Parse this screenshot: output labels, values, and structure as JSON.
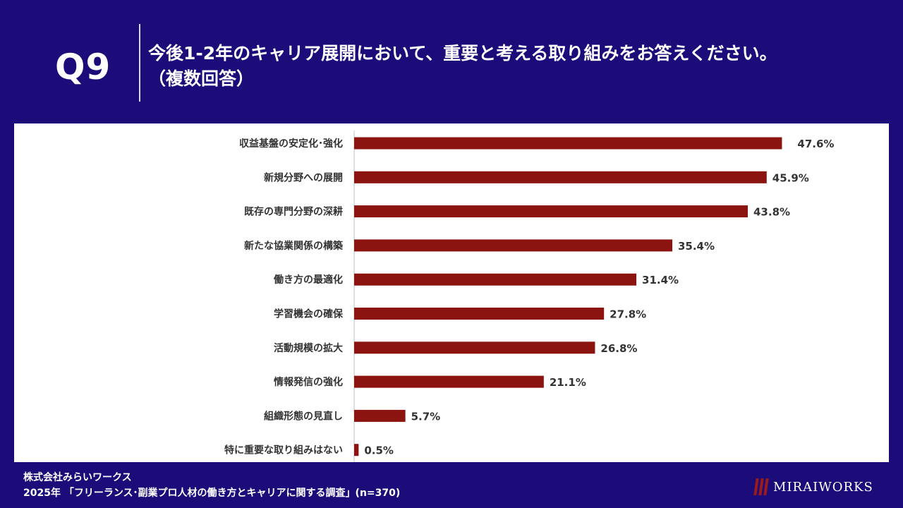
{
  "header": {
    "q_label": "Q9",
    "question": "今後1-2年のキャリア展開において、重要と考える取り組みをお答えください。",
    "question_note": "（複数回答）"
  },
  "chart_data": {
    "type": "bar",
    "orientation": "horizontal",
    "categories": [
      "収益基盤の安定化･強化",
      "新規分野への展開",
      "既存の専門分野の深耕",
      "新たな協業関係の構築",
      "働き方の最適化",
      "学習機会の確保",
      "活動規模の拡大",
      "情報発信の強化",
      "組織形態の見直し",
      "特に重要な取り組みはない"
    ],
    "values": [
      47.6,
      45.9,
      43.8,
      35.4,
      31.4,
      27.8,
      26.8,
      21.1,
      5.7,
      0.5
    ],
    "value_labels": [
      "47.6%",
      "45.9%",
      "43.8%",
      "35.4%",
      "31.4%",
      "27.8%",
      "26.8%",
      "21.1%",
      "5.7%",
      "0.5%"
    ],
    "unit": "%",
    "xlim": [
      0,
      50
    ],
    "bar_color": "#8b1410",
    "grid": false
  },
  "footer": {
    "company": "株式会社みらいワークス",
    "survey": "2025年 「フリーランス･副業プロ人材の働き方とキャリアに関する調査」(n=370)"
  },
  "logo": {
    "text": "MIRAIWORKS",
    "mark_color": "#9b1b1b"
  }
}
